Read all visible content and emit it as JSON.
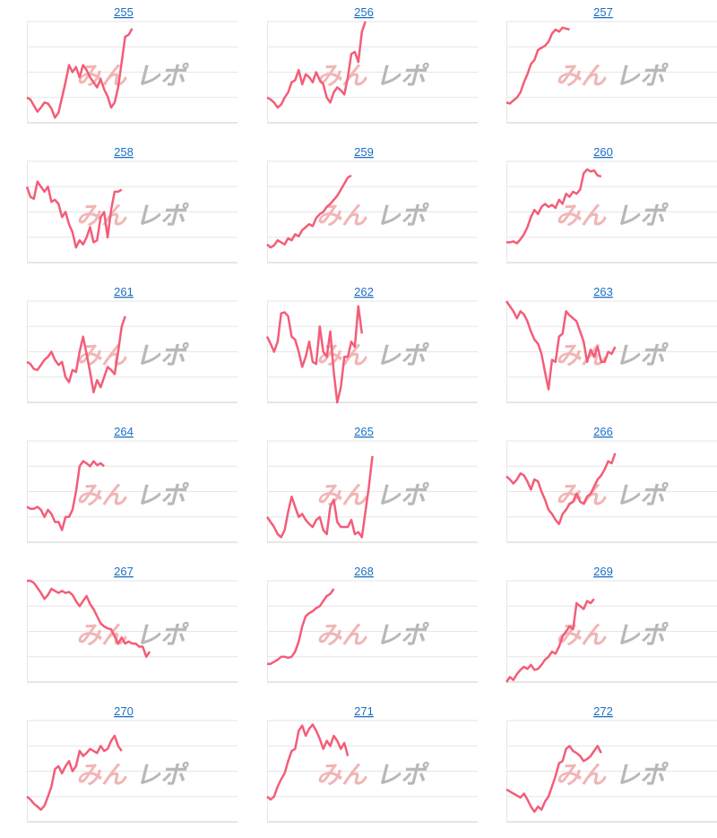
{
  "watermark": [
    "みん",
    "レポ"
  ],
  "chart_data": [
    {
      "type": "line",
      "title": "255",
      "color": "#f35d78",
      "xlim": [
        0,
        60
      ],
      "ylim": [
        0,
        100
      ],
      "yticks": [
        0,
        25,
        50,
        75,
        100
      ],
      "values": [
        25,
        23,
        17,
        11,
        15,
        20,
        19,
        14,
        5,
        10,
        25,
        40,
        57,
        50,
        55,
        45,
        57,
        52,
        45,
        40,
        35,
        43,
        33,
        26,
        15,
        20,
        35,
        60,
        85,
        87,
        93
      ]
    },
    {
      "type": "line",
      "title": "256",
      "color": "#f35d78",
      "xlim": [
        0,
        60
      ],
      "ylim": [
        0,
        100
      ],
      "yticks": [
        0,
        25,
        50,
        75,
        100
      ],
      "values": [
        25,
        23,
        20,
        15,
        18,
        25,
        30,
        40,
        42,
        52,
        38,
        48,
        45,
        40,
        50,
        42,
        38,
        25,
        20,
        30,
        35,
        32,
        28,
        45,
        68,
        70,
        60,
        90,
        100
      ]
    },
    {
      "type": "line",
      "title": "257",
      "color": "#f35d78",
      "xlim": [
        0,
        60
      ],
      "ylim": [
        0,
        100
      ],
      "yticks": [
        0,
        25,
        50,
        75,
        100
      ],
      "values": [
        20,
        19,
        22,
        25,
        30,
        40,
        48,
        58,
        62,
        72,
        74,
        76,
        80,
        88,
        92,
        90,
        94,
        93,
        92
      ]
    },
    {
      "type": "line",
      "title": "258",
      "color": "#f35d78",
      "xlim": [
        0,
        60
      ],
      "ylim": [
        0,
        100
      ],
      "yticks": [
        0,
        25,
        50,
        75,
        100
      ],
      "values": [
        75,
        65,
        63,
        80,
        75,
        70,
        75,
        60,
        62,
        58,
        45,
        50,
        38,
        30,
        15,
        22,
        18,
        25,
        35,
        20,
        22,
        45,
        50,
        25,
        52,
        70,
        70,
        72
      ]
    },
    {
      "type": "line",
      "title": "259",
      "color": "#f35d78",
      "xlim": [
        0,
        60
      ],
      "ylim": [
        0,
        100
      ],
      "yticks": [
        0,
        25,
        50,
        75,
        100
      ],
      "values": [
        18,
        15,
        17,
        22,
        20,
        18,
        24,
        22,
        28,
        26,
        32,
        35,
        38,
        36,
        44,
        48,
        50,
        55,
        58,
        62,
        66,
        72,
        78,
        84,
        86
      ]
    },
    {
      "type": "line",
      "title": "260",
      "color": "#f35d78",
      "xlim": [
        0,
        60
      ],
      "ylim": [
        0,
        100
      ],
      "yticks": [
        0,
        25,
        50,
        75,
        100
      ],
      "values": [
        20,
        20,
        21,
        19,
        23,
        28,
        35,
        45,
        52,
        48,
        55,
        58,
        55,
        57,
        54,
        62,
        58,
        68,
        65,
        70,
        68,
        72,
        88,
        92,
        90,
        91,
        86,
        85
      ]
    },
    {
      "type": "line",
      "title": "261",
      "color": "#f35d78",
      "xlim": [
        0,
        60
      ],
      "ylim": [
        0,
        100
      ],
      "yticks": [
        0,
        25,
        50,
        75,
        100
      ],
      "values": [
        40,
        38,
        33,
        32,
        37,
        42,
        45,
        50,
        42,
        37,
        40,
        25,
        20,
        32,
        30,
        50,
        65,
        48,
        30,
        10,
        22,
        15,
        25,
        35,
        32,
        28,
        50,
        75,
        85
      ]
    },
    {
      "type": "line",
      "title": "262",
      "color": "#f35d78",
      "xlim": [
        0,
        60
      ],
      "ylim": [
        0,
        100
      ],
      "yticks": [
        0,
        25,
        50,
        75,
        100
      ],
      "values": [
        65,
        58,
        50,
        60,
        88,
        89,
        85,
        65,
        62,
        50,
        35,
        45,
        60,
        40,
        38,
        75,
        50,
        45,
        70,
        30,
        0,
        15,
        45,
        45,
        60,
        55,
        95,
        68
      ]
    },
    {
      "type": "line",
      "title": "263",
      "color": "#f35d78",
      "xlim": [
        0,
        60
      ],
      "ylim": [
        0,
        100
      ],
      "yticks": [
        0,
        25,
        50,
        75,
        100
      ],
      "values": [
        100,
        95,
        90,
        83,
        90,
        87,
        80,
        70,
        62,
        58,
        48,
        30,
        13,
        42,
        40,
        65,
        68,
        90,
        86,
        83,
        80,
        70,
        60,
        40,
        52,
        45,
        55,
        40,
        40,
        50,
        48,
        55
      ]
    },
    {
      "type": "line",
      "title": "264",
      "color": "#f35d78",
      "xlim": [
        0,
        60
      ],
      "ylim": [
        0,
        100
      ],
      "yticks": [
        0,
        25,
        50,
        75,
        100
      ],
      "values": [
        35,
        33,
        33,
        35,
        32,
        25,
        32,
        28,
        20,
        20,
        12,
        25,
        25,
        32,
        50,
        75,
        80,
        78,
        75,
        80,
        76,
        78,
        75
      ]
    },
    {
      "type": "line",
      "title": "265",
      "color": "#f35d78",
      "xlim": [
        0,
        60
      ],
      "ylim": [
        0,
        100
      ],
      "yticks": [
        0,
        25,
        50,
        75,
        100
      ],
      "values": [
        25,
        20,
        15,
        8,
        5,
        12,
        30,
        45,
        35,
        25,
        28,
        22,
        18,
        15,
        22,
        25,
        12,
        8,
        35,
        42,
        20,
        15,
        15,
        15,
        22,
        8,
        10,
        5,
        30,
        55,
        85
      ]
    },
    {
      "type": "line",
      "title": "266",
      "color": "#f35d78",
      "xlim": [
        0,
        60
      ],
      "ylim": [
        0,
        100
      ],
      "yticks": [
        0,
        25,
        50,
        75,
        100
      ],
      "values": [
        65,
        62,
        58,
        62,
        68,
        66,
        60,
        52,
        62,
        60,
        50,
        42,
        32,
        28,
        22,
        18,
        28,
        32,
        38,
        40,
        48,
        40,
        38,
        45,
        48,
        55,
        62,
        66,
        72,
        80,
        78,
        88
      ]
    },
    {
      "type": "line",
      "title": "267",
      "color": "#f35d78",
      "xlim": [
        0,
        60
      ],
      "ylim": [
        0,
        100
      ],
      "yticks": [
        0,
        25,
        50,
        75,
        100
      ],
      "values": [
        100,
        100,
        98,
        93,
        88,
        82,
        86,
        92,
        90,
        88,
        90,
        88,
        89,
        86,
        80,
        75,
        80,
        85,
        77,
        72,
        65,
        58,
        55,
        53,
        52,
        45,
        38,
        44,
        38,
        40,
        38,
        38,
        35,
        35,
        25,
        30
      ]
    },
    {
      "type": "line",
      "title": "268",
      "color": "#f35d78",
      "xlim": [
        0,
        60
      ],
      "ylim": [
        0,
        100
      ],
      "yticks": [
        0,
        25,
        50,
        75,
        100
      ],
      "values": [
        18,
        18,
        20,
        22,
        25,
        25,
        24,
        25,
        30,
        40,
        55,
        65,
        68,
        70,
        73,
        75,
        80,
        85,
        87,
        92
      ]
    },
    {
      "type": "line",
      "title": "269",
      "color": "#f35d78",
      "xlim": [
        0,
        60
      ],
      "ylim": [
        0,
        100
      ],
      "yticks": [
        0,
        25,
        50,
        75,
        100
      ],
      "values": [
        0,
        5,
        2,
        8,
        12,
        15,
        13,
        17,
        12,
        13,
        17,
        22,
        25,
        30,
        28,
        35,
        45,
        50,
        55,
        52,
        78,
        75,
        72,
        80,
        78,
        82
      ]
    },
    {
      "type": "line",
      "title": "270",
      "color": "#f35d78",
      "xlim": [
        0,
        60
      ],
      "ylim": [
        0,
        100
      ],
      "yticks": [
        0,
        25,
        50,
        75,
        100
      ],
      "values": [
        25,
        22,
        18,
        15,
        12,
        16,
        25,
        35,
        52,
        55,
        48,
        55,
        60,
        50,
        55,
        70,
        65,
        68,
        72,
        70,
        68,
        75,
        70,
        72,
        80,
        85,
        75,
        70
      ]
    },
    {
      "type": "line",
      "title": "271",
      "color": "#f35d78",
      "xlim": [
        0,
        60
      ],
      "ylim": [
        0,
        100
      ],
      "yticks": [
        0,
        25,
        50,
        75,
        100
      ],
      "values": [
        25,
        22,
        25,
        35,
        42,
        48,
        60,
        70,
        72,
        90,
        95,
        85,
        92,
        96,
        90,
        82,
        72,
        80,
        75,
        85,
        80,
        72,
        78,
        65
      ]
    },
    {
      "type": "line",
      "title": "272",
      "color": "#f35d78",
      "xlim": [
        0,
        60
      ],
      "ylim": [
        0,
        100
      ],
      "yticks": [
        0,
        25,
        50,
        75,
        100
      ],
      "values": [
        32,
        30,
        28,
        26,
        24,
        28,
        22,
        15,
        10,
        15,
        12,
        20,
        25,
        35,
        45,
        58,
        60,
        72,
        75,
        70,
        68,
        65,
        60,
        62,
        65,
        70,
        75,
        68
      ]
    }
  ]
}
